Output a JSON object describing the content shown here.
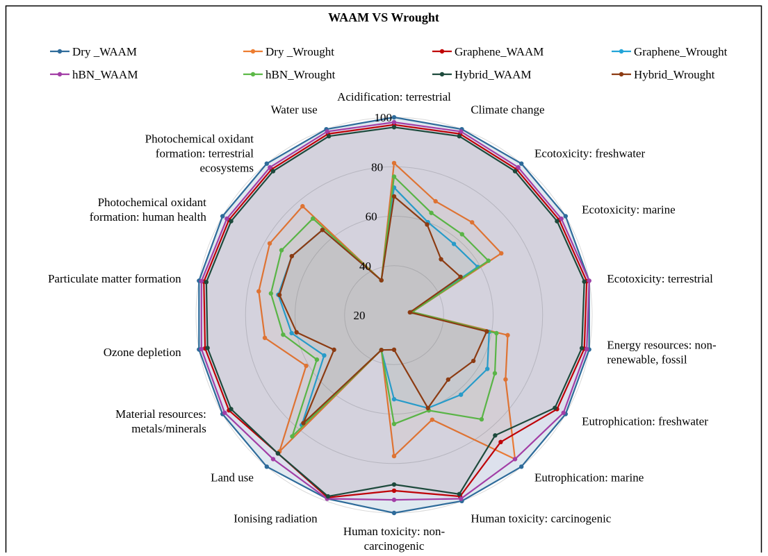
{
  "chart_data": {
    "type": "radar",
    "title": "WAAM VS Wrought",
    "categories": [
      "Acidification: terrestrial",
      "Climate change",
      "Ecotoxicity: freshwater",
      "Ecotoxicity: marine",
      "Ecotoxicity: terrestrial",
      "Energy resources: non-renewable, fossil",
      "Eutrophication: freshwater",
      "Eutrophication: marine",
      "Human toxicity: carcinogenic",
      "Human toxicity: non-carcinogenic",
      "Ionising radiation",
      "Land use",
      "Material resources: metals/minerals",
      "Ozone depletion",
      "Particulate matter formation",
      "Photochemical oxidant formation: human health",
      "Photochemical oxidant formation: terrestrial ecosystems",
      "Water use"
    ],
    "ylim": [
      20,
      100
    ],
    "yticks": [
      20,
      40,
      60,
      80,
      100
    ],
    "grid": true,
    "legend": "top",
    "series": [
      {
        "name": "Dry _WAAM",
        "color": "#2e6b9a",
        "values": [
          100,
          100,
          100,
          100,
          100,
          100,
          100,
          100,
          100,
          100,
          99,
          100,
          100,
          100,
          100,
          100,
          100,
          100
        ]
      },
      {
        "name": "Dry _Wrought",
        "color": "#ed7d31",
        "values": [
          81.5,
          69,
          69,
          70,
          27.5,
          66.6,
          72,
          96,
          65,
          77,
          35,
          92,
          61,
          73,
          75.5,
          78,
          77.5,
          35
        ]
      },
      {
        "name": "Graphene_WAAM",
        "color": "#c00000",
        "values": [
          97,
          98,
          97,
          97,
          99,
          98,
          96,
          87,
          98,
          91,
          98.5,
          93,
          97,
          97.5,
          98,
          97,
          97,
          98
        ]
      },
      {
        "name": "Graphene_Wrought",
        "color": "#22a4d8",
        "values": [
          71.6,
          60,
          57.6,
          59,
          27,
          59,
          63.5,
          62,
          60,
          54,
          35,
          78,
          52.6,
          62,
          67.5,
          67.7,
          65,
          35
        ]
      },
      {
        "name": "hBN_WAAM",
        "color": "#a23ea6",
        "values": [
          98,
          99,
          98,
          98,
          100,
          99,
          99,
          96,
          99,
          94.7,
          99,
          96,
          99,
          99,
          99,
          98,
          98,
          99
        ]
      },
      {
        "name": "hBN_Wrought",
        "color": "#5cb947",
        "values": [
          76,
          64,
          62.7,
          64,
          27.5,
          62,
          67,
          75,
          61,
          64,
          35,
          84,
          56,
          65.5,
          70.5,
          72.5,
          71,
          35
        ]
      },
      {
        "name": "Hybrid_WAAM",
        "color": "#1d4a3c",
        "values": [
          96,
          97,
          96,
          96,
          98,
          97,
          95,
          83.5,
          97,
          88.5,
          98,
          93,
          96,
          96.5,
          97,
          96,
          96,
          97
        ]
      },
      {
        "name": "Hybrid_Wrought",
        "color": "#8c3b12",
        "values": [
          68,
          59,
          49.5,
          51,
          26.5,
          58,
          57,
          54,
          60,
          34,
          35,
          77,
          48,
          60,
          67,
          67.7,
          65,
          35
        ]
      }
    ]
  }
}
